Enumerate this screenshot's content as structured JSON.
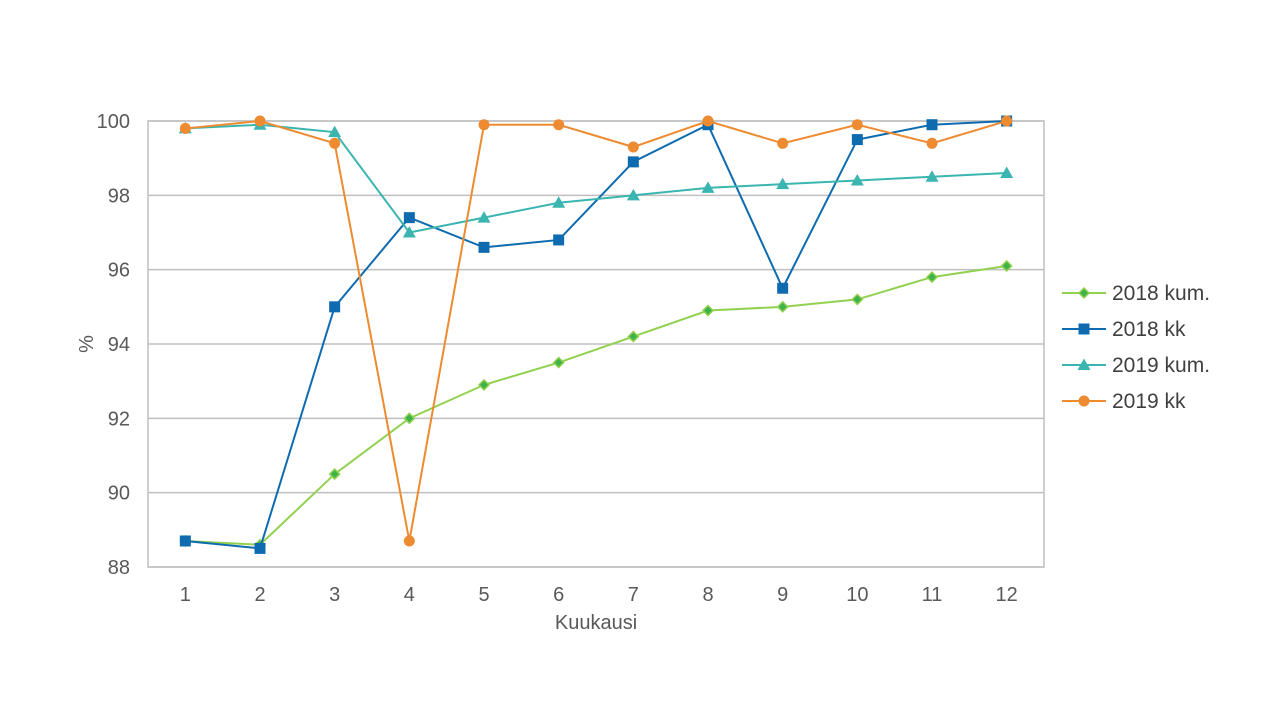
{
  "chart_data": {
    "type": "line",
    "title": "",
    "xlabel": "Kuukausi",
    "ylabel": "%",
    "x": [
      1,
      2,
      3,
      4,
      5,
      6,
      7,
      8,
      9,
      10,
      11,
      12
    ],
    "ylim": [
      88,
      100
    ],
    "yticks": [
      88,
      90,
      92,
      94,
      96,
      98,
      100
    ],
    "grid": true,
    "legend_position": "right",
    "series": [
      {
        "name": "2018 kum.",
        "color": "#92D050",
        "marker": "diamond",
        "values": [
          88.7,
          88.6,
          90.5,
          92.0,
          92.9,
          93.5,
          94.2,
          94.9,
          95.0,
          95.2,
          95.8,
          96.1
        ]
      },
      {
        "name": "2018 kk",
        "color": "#0E6BB0",
        "marker": "square",
        "values": [
          88.7,
          88.5,
          95.0,
          97.4,
          96.6,
          96.8,
          98.9,
          99.9,
          95.5,
          99.5,
          99.9,
          100.0
        ]
      },
      {
        "name": "2019 kum.",
        "color": "#3BB5B0",
        "marker": "triangle",
        "values": [
          99.8,
          99.9,
          99.7,
          97.0,
          97.4,
          97.8,
          98.0,
          98.2,
          98.3,
          98.4,
          98.5,
          98.6
        ]
      },
      {
        "name": "2019 kk",
        "color": "#EE8B30",
        "marker": "circle",
        "values": [
          99.8,
          100.0,
          99.4,
          88.7,
          99.9,
          99.9,
          99.3,
          100.0,
          99.4,
          99.9,
          99.4,
          100.0
        ]
      }
    ]
  }
}
